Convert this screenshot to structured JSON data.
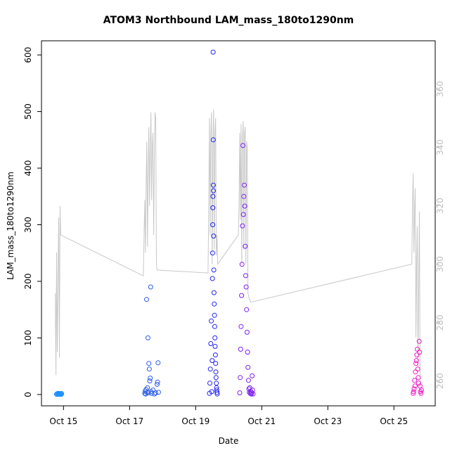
{
  "chart_data": {
    "type": "scatter",
    "title": "ATOM3 Northbound LAM_mass_180to1290nm",
    "xlabel": "Date",
    "ylabel": "LAM_mass_180to1290nm",
    "x_axis": {
      "kind": "date",
      "range": [
        "2016-10-14T08:00",
        "2016-10-26T06:00"
      ],
      "ticks": [
        {
          "value": "2016-10-15",
          "label": "Oct 15"
        },
        {
          "value": "2016-10-17",
          "label": "Oct 17"
        },
        {
          "value": "2016-10-19",
          "label": "Oct 19"
        },
        {
          "value": "2016-10-21",
          "label": "Oct 21"
        },
        {
          "value": "2016-10-23",
          "label": "Oct 23"
        },
        {
          "value": "2016-10-25",
          "label": "Oct 25"
        }
      ]
    },
    "y_axis": {
      "range": [
        -20,
        625
      ],
      "ticks": [
        0,
        100,
        200,
        300,
        400,
        500,
        600
      ]
    },
    "y2_axis": {
      "range": [
        251.5,
        376.5
      ],
      "ticks": [
        260,
        280,
        300,
        320,
        340,
        360
      ],
      "color": "#bebebe"
    },
    "grid": false,
    "legend": "none",
    "colors": {
      "oct14": "#1E90FF",
      "oct17": "#2A5BEA",
      "oct19": "#2323F2",
      "oct20": "#7A1FF0",
      "oct25": "#F019C8",
      "secondary_line": "#c8c8c8"
    },
    "series": [
      {
        "color": "#1E90FF",
        "points": [
          [
            "2016-10-14T19:00",
            0.5
          ],
          [
            "2016-10-14T19:20",
            1.2
          ],
          [
            "2016-10-14T19:40",
            0.3
          ],
          [
            "2016-10-14T20:00",
            2.1
          ],
          [
            "2016-10-14T20:20",
            0.8
          ],
          [
            "2016-10-14T20:40",
            1.5
          ],
          [
            "2016-10-14T21:00",
            0.4
          ],
          [
            "2016-10-14T21:20",
            1.9
          ],
          [
            "2016-10-14T21:40",
            0.6
          ],
          [
            "2016-10-14T22:00",
            1.1
          ],
          [
            "2016-10-14T22:20",
            0.2
          ],
          [
            "2016-10-14T22:40",
            1.7
          ]
        ]
      },
      {
        "color": "#2A5BEA",
        "points": [
          [
            "2016-10-17T11:00",
            2
          ],
          [
            "2016-10-17T11:20",
            6
          ],
          [
            "2016-10-17T11:40",
            1
          ],
          [
            "2016-10-17T12:00",
            9
          ],
          [
            "2016-10-17T12:20",
            168
          ],
          [
            "2016-10-17T12:40",
            4
          ],
          [
            "2016-10-17T13:00",
            12
          ],
          [
            "2016-10-17T13:20",
            100
          ],
          [
            "2016-10-17T13:40",
            3
          ],
          [
            "2016-10-17T14:00",
            55
          ],
          [
            "2016-10-17T14:20",
            45
          ],
          [
            "2016-10-17T14:40",
            24
          ],
          [
            "2016-10-17T15:00",
            29
          ],
          [
            "2016-10-17T15:20",
            190
          ],
          [
            "2016-10-17T15:40",
            5
          ],
          [
            "2016-10-17T16:00",
            2
          ],
          [
            "2016-10-17T17:00",
            8
          ],
          [
            "2016-10-17T18:00",
            1
          ],
          [
            "2016-10-17T19:00",
            3
          ],
          [
            "2016-10-17T20:00",
            18
          ],
          [
            "2016-10-17T20:20",
            22
          ],
          [
            "2016-10-17T20:40",
            56
          ],
          [
            "2016-10-17T21:00",
            4
          ]
        ]
      },
      {
        "color": "#2323F2",
        "points": [
          [
            "2016-10-19T10:00",
            2
          ],
          [
            "2016-10-19T10:20",
            20
          ],
          [
            "2016-10-19T10:40",
            45
          ],
          [
            "2016-10-19T11:00",
            90
          ],
          [
            "2016-10-19T11:20",
            130
          ],
          [
            "2016-10-19T11:40",
            5
          ],
          [
            "2016-10-19T12:00",
            60
          ],
          [
            "2016-10-19T12:10",
            205
          ],
          [
            "2016-10-19T12:20",
            250
          ],
          [
            "2016-10-19T12:25",
            300
          ],
          [
            "2016-10-19T12:30",
            330
          ],
          [
            "2016-10-19T12:35",
            350
          ],
          [
            "2016-10-19T12:40",
            605
          ],
          [
            "2016-10-19T12:45",
            450
          ],
          [
            "2016-10-19T12:50",
            370
          ],
          [
            "2016-10-19T12:55",
            360
          ],
          [
            "2016-10-19T13:00",
            280
          ],
          [
            "2016-10-19T13:10",
            220
          ],
          [
            "2016-10-19T13:20",
            180
          ],
          [
            "2016-10-19T13:30",
            160
          ],
          [
            "2016-10-19T13:40",
            140
          ],
          [
            "2016-10-19T13:50",
            120
          ],
          [
            "2016-10-19T14:00",
            100
          ],
          [
            "2016-10-19T14:10",
            85
          ],
          [
            "2016-10-19T14:20",
            70
          ],
          [
            "2016-10-19T14:30",
            55
          ],
          [
            "2016-10-19T14:40",
            40
          ],
          [
            "2016-10-19T14:50",
            30
          ],
          [
            "2016-10-19T15:00",
            20
          ],
          [
            "2016-10-19T15:10",
            12
          ],
          [
            "2016-10-19T15:20",
            8
          ],
          [
            "2016-10-19T15:30",
            4
          ],
          [
            "2016-10-19T15:40",
            1
          ]
        ]
      },
      {
        "color": "#7A1FF0",
        "points": [
          [
            "2016-10-20T08:00",
            3
          ],
          [
            "2016-10-20T08:20",
            30
          ],
          [
            "2016-10-20T08:40",
            80
          ],
          [
            "2016-10-20T09:00",
            120
          ],
          [
            "2016-10-20T09:20",
            175
          ],
          [
            "2016-10-20T09:40",
            230
          ],
          [
            "2016-10-20T10:00",
            298
          ],
          [
            "2016-10-20T10:20",
            440
          ],
          [
            "2016-10-20T10:40",
            318
          ],
          [
            "2016-10-20T11:00",
            350
          ],
          [
            "2016-10-20T11:20",
            370
          ],
          [
            "2016-10-20T11:40",
            333
          ],
          [
            "2016-10-20T12:00",
            262
          ],
          [
            "2016-10-20T12:20",
            210
          ],
          [
            "2016-10-20T12:40",
            190
          ],
          [
            "2016-10-20T13:00",
            150
          ],
          [
            "2016-10-20T13:20",
            110
          ],
          [
            "2016-10-20T13:40",
            75
          ],
          [
            "2016-10-20T14:00",
            48
          ],
          [
            "2016-10-20T14:20",
            25
          ],
          [
            "2016-10-20T14:40",
            10
          ],
          [
            "2016-10-20T15:00",
            4
          ],
          [
            "2016-10-20T15:20",
            12
          ],
          [
            "2016-10-20T15:40",
            2
          ],
          [
            "2016-10-20T16:00",
            6
          ],
          [
            "2016-10-20T16:20",
            1
          ],
          [
            "2016-10-20T16:40",
            3
          ],
          [
            "2016-10-20T17:00",
            33
          ],
          [
            "2016-10-20T17:20",
            8
          ],
          [
            "2016-10-20T17:40",
            1
          ]
        ]
      },
      {
        "color": "#F019C8",
        "points": [
          [
            "2016-10-25T14:00",
            2
          ],
          [
            "2016-10-25T14:20",
            5
          ],
          [
            "2016-10-25T14:40",
            10
          ],
          [
            "2016-10-25T15:00",
            25
          ],
          [
            "2016-10-25T15:20",
            15
          ],
          [
            "2016-10-25T15:40",
            40
          ],
          [
            "2016-10-25T16:00",
            55
          ],
          [
            "2016-10-25T16:20",
            60
          ],
          [
            "2016-10-25T16:40",
            70
          ],
          [
            "2016-10-25T17:00",
            80
          ],
          [
            "2016-10-25T17:20",
            45
          ],
          [
            "2016-10-25T17:40",
            30
          ],
          [
            "2016-10-25T18:00",
            20
          ],
          [
            "2016-10-25T18:20",
            94
          ],
          [
            "2016-10-25T18:40",
            75
          ],
          [
            "2016-10-25T19:00",
            15
          ],
          [
            "2016-10-25T19:20",
            5
          ],
          [
            "2016-10-25T19:40",
            2
          ],
          [
            "2016-10-25T20:00",
            8
          ]
        ]
      }
    ],
    "secondary_series": {
      "color": "#c8c8c8",
      "points": [
        [
          "2016-10-14T18:00",
          290
        ],
        [
          "2016-10-14T18:30",
          262
        ],
        [
          "2016-10-14T19:00",
          304
        ],
        [
          "2016-10-14T19:30",
          270
        ],
        [
          "2016-10-14T20:00",
          296
        ],
        [
          "2016-10-14T20:30",
          316
        ],
        [
          "2016-10-14T21:00",
          268
        ],
        [
          "2016-10-14T21:30",
          320
        ],
        [
          "2016-10-14T22:00",
          310
        ],
        [
          "2016-10-17T10:00",
          296
        ],
        [
          "2016-10-17T10:30",
          310
        ],
        [
          "2016-10-17T11:00",
          322
        ],
        [
          "2016-10-17T11:30",
          304
        ],
        [
          "2016-10-17T12:00",
          326
        ],
        [
          "2016-10-17T12:30",
          342
        ],
        [
          "2016-10-17T13:00",
          306
        ],
        [
          "2016-10-17T13:30",
          330
        ],
        [
          "2016-10-17T14:00",
          347
        ],
        [
          "2016-10-17T14:30",
          320
        ],
        [
          "2016-10-17T15:00",
          338
        ],
        [
          "2016-10-17T15:30",
          352
        ],
        [
          "2016-10-17T16:00",
          322
        ],
        [
          "2016-10-17T16:30",
          340
        ],
        [
          "2016-10-17T17:00",
          345
        ],
        [
          "2016-10-17T17:30",
          310
        ],
        [
          "2016-10-17T18:00",
          338
        ],
        [
          "2016-10-17T18:30",
          352
        ],
        [
          "2016-10-17T19:00",
          350
        ],
        [
          "2016-10-17T19:30",
          300
        ],
        [
          "2016-10-17T20:00",
          298
        ],
        [
          "2016-10-19T09:00",
          297
        ],
        [
          "2016-10-19T09:30",
          320
        ],
        [
          "2016-10-19T10:00",
          350
        ],
        [
          "2016-10-19T10:30",
          310
        ],
        [
          "2016-10-19T11:00",
          344
        ],
        [
          "2016-10-19T11:30",
          352
        ],
        [
          "2016-10-19T12:00",
          300
        ],
        [
          "2016-10-19T12:30",
          340
        ],
        [
          "2016-10-19T13:00",
          353
        ],
        [
          "2016-10-19T13:30",
          305
        ],
        [
          "2016-10-19T14:00",
          345
        ],
        [
          "2016-10-19T14:30",
          350
        ],
        [
          "2016-10-19T15:00",
          303
        ],
        [
          "2016-10-19T15:30",
          310
        ],
        [
          "2016-10-19T16:00",
          300
        ],
        [
          "2016-10-20T07:00",
          310
        ],
        [
          "2016-10-20T07:30",
          320
        ],
        [
          "2016-10-20T08:00",
          345
        ],
        [
          "2016-10-20T08:30",
          315
        ],
        [
          "2016-10-20T09:00",
          348
        ],
        [
          "2016-10-20T09:30",
          300
        ],
        [
          "2016-10-20T10:00",
          343
        ],
        [
          "2016-10-20T10:30",
          349
        ],
        [
          "2016-10-20T11:00",
          305
        ],
        [
          "2016-10-20T11:30",
          345
        ],
        [
          "2016-10-20T12:00",
          347
        ],
        [
          "2016-10-20T12:30",
          300
        ],
        [
          "2016-10-20T13:00",
          342
        ],
        [
          "2016-10-20T13:30",
          340
        ],
        [
          "2016-10-20T14:00",
          290
        ],
        [
          "2016-10-20T15:00",
          288
        ],
        [
          "2016-10-20T16:00",
          287
        ],
        [
          "2016-10-25T13:00",
          300
        ],
        [
          "2016-10-25T13:30",
          320
        ],
        [
          "2016-10-25T14:00",
          331
        ],
        [
          "2016-10-25T14:30",
          304
        ],
        [
          "2016-10-25T15:00",
          318
        ],
        [
          "2016-10-25T15:30",
          326
        ],
        [
          "2016-10-25T16:00",
          275
        ],
        [
          "2016-10-25T16:30",
          300
        ],
        [
          "2016-10-25T17:00",
          313
        ],
        [
          "2016-10-25T17:30",
          265
        ],
        [
          "2016-10-25T18:00",
          290
        ],
        [
          "2016-10-25T18:30",
          318
        ],
        [
          "2016-10-25T19:00",
          263
        ],
        [
          "2016-10-25T19:30",
          255
        ]
      ]
    }
  }
}
